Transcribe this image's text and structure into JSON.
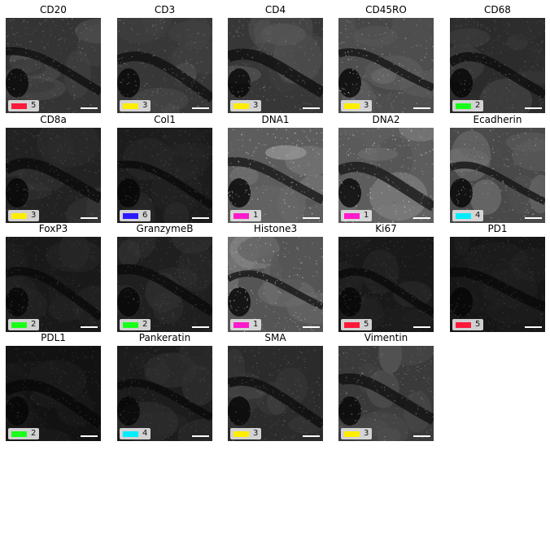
{
  "panels": [
    {
      "marker": "CD20",
      "count": "5",
      "swatch_color": "#ff1a3c",
      "brightness": 0.28
    },
    {
      "marker": "CD3",
      "count": "3",
      "swatch_color": "#ffee00",
      "brightness": 0.3
    },
    {
      "marker": "CD4",
      "count": "3",
      "swatch_color": "#ffee00",
      "brightness": 0.3
    },
    {
      "marker": "CD45RO",
      "count": "3",
      "swatch_color": "#ffee00",
      "brightness": 0.45
    },
    {
      "marker": "CD68",
      "count": "2",
      "swatch_color": "#1aff1a",
      "brightness": 0.22
    },
    {
      "marker": "CD8a",
      "count": "3",
      "swatch_color": "#ffee00",
      "brightness": 0.16
    },
    {
      "marker": "Col1",
      "count": "6",
      "swatch_color": "#2a1aff",
      "brightness": 0.12
    },
    {
      "marker": "DNA1",
      "count": "1",
      "swatch_color": "#ff1acc",
      "brightness": 0.55
    },
    {
      "marker": "DNA2",
      "count": "1",
      "swatch_color": "#ff1acc",
      "brightness": 0.55
    },
    {
      "marker": "Ecadherin",
      "count": "4",
      "swatch_color": "#00eeff",
      "brightness": 0.42
    },
    {
      "marker": "FoxP3",
      "count": "2",
      "swatch_color": "#1aff1a",
      "brightness": 0.1
    },
    {
      "marker": "GranzymeB",
      "count": "2",
      "swatch_color": "#1aff1a",
      "brightness": 0.14
    },
    {
      "marker": "Histone3",
      "count": "1",
      "swatch_color": "#ff1acc",
      "brightness": 0.5
    },
    {
      "marker": "Ki67",
      "count": "5",
      "swatch_color": "#ff1a3c",
      "brightness": 0.1
    },
    {
      "marker": "PD1",
      "count": "5",
      "swatch_color": "#ff1a3c",
      "brightness": 0.08
    },
    {
      "marker": "PDL1",
      "count": "2",
      "swatch_color": "#1aff1a",
      "brightness": 0.05
    },
    {
      "marker": "Pankeratin",
      "count": "4",
      "swatch_color": "#00eeff",
      "brightness": 0.12
    },
    {
      "marker": "SMA",
      "count": "3",
      "swatch_color": "#ffee00",
      "brightness": 0.22
    },
    {
      "marker": "Vimentin",
      "count": "3",
      "swatch_color": "#ffee00",
      "brightness": 0.32
    }
  ]
}
